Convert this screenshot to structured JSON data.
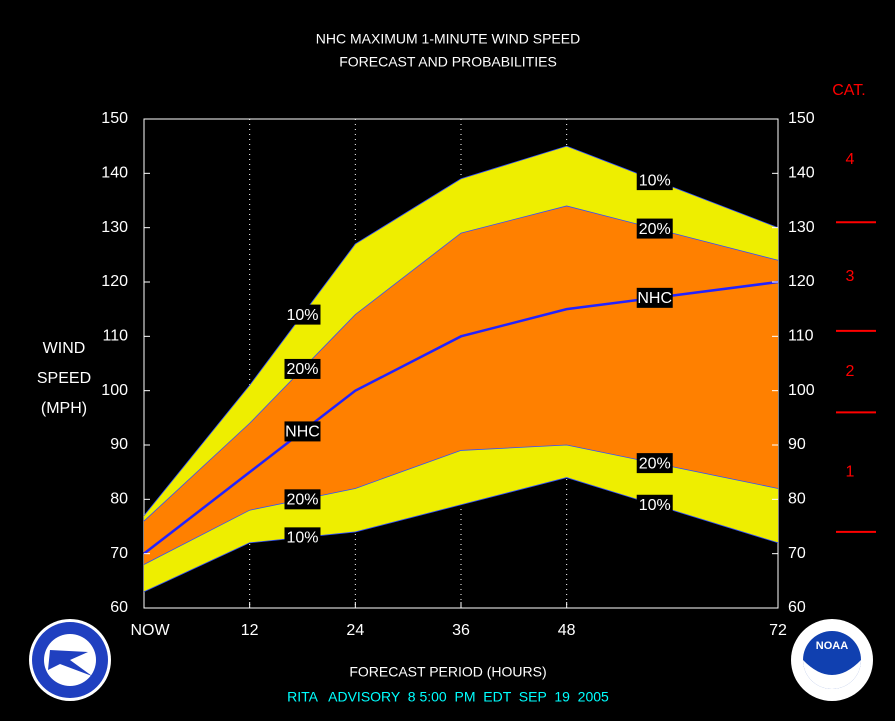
{
  "chart_data": {
    "type": "area",
    "title": "NHC MAXIMUM 1-MINUTE WIND SPEED",
    "subtitle": "FORECAST AND PROBABILITIES",
    "ylabel_lines": [
      "WIND",
      "SPEED",
      "(MPH)"
    ],
    "xlabel": "FORECAST PERIOD (HOURS)",
    "footer": "RITA   ADVISORY  8 5:00  PM  EDT  SEP  19  2005",
    "x": [
      0,
      12,
      24,
      36,
      48,
      72
    ],
    "xlim": [
      0,
      72
    ],
    "xticks": [
      {
        "value": 0,
        "label": "NOW"
      },
      12,
      24,
      36,
      48,
      72
    ],
    "ylim": [
      60,
      150
    ],
    "yticks": [
      60,
      70,
      80,
      90,
      100,
      110,
      120,
      130,
      140,
      150
    ],
    "xgrid": true,
    "series": [
      {
        "name": "10%",
        "color": "#eeee00",
        "values": [
          77,
          101,
          127,
          139,
          145,
          130
        ]
      },
      {
        "name": "20%",
        "color": "#ff8000",
        "values": [
          76,
          94,
          114,
          129,
          134,
          124
        ]
      },
      {
        "name": "NHC",
        "color": "#2222ff",
        "values": [
          70,
          85,
          100,
          110,
          115,
          120
        ]
      },
      {
        "name": "20%",
        "color": "#ff8000",
        "values": [
          68,
          78,
          82,
          89,
          90,
          82
        ]
      },
      {
        "name": "10%",
        "color": "#eeee00",
        "values": [
          63,
          72,
          74,
          79,
          84,
          72
        ]
      }
    ],
    "category_title": "CAT.",
    "category_color": "#ff0000",
    "category_thresholds": [
      74,
      96,
      111,
      131
    ],
    "category_labels": [
      "1",
      "2",
      "3",
      "4"
    ],
    "logo_text": "NOAA"
  }
}
